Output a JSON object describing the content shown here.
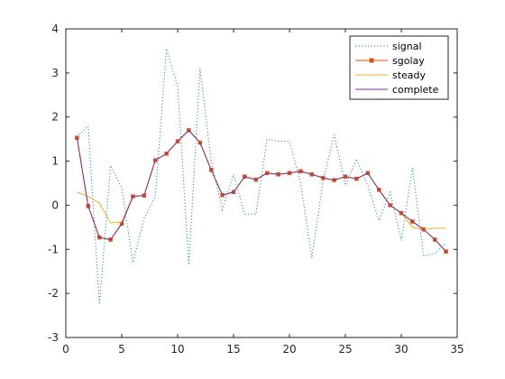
{
  "chart_data": {
    "type": "line",
    "title": "",
    "xlabel": "",
    "ylabel": "",
    "xlim": [
      0,
      35
    ],
    "ylim": [
      -3,
      4
    ],
    "xticks": [
      0,
      5,
      10,
      15,
      20,
      25,
      30,
      35
    ],
    "yticks": [
      -3,
      -2,
      -1,
      0,
      1,
      2,
      3,
      4
    ],
    "grid": false,
    "legend_position": "top-right",
    "series": [
      {
        "name": "signal",
        "style": "dotted",
        "marker": "none",
        "color": "#0072BD",
        "x": [
          1,
          2,
          3,
          4,
          5,
          6,
          7,
          8,
          9,
          10,
          11,
          12,
          13,
          14,
          15,
          16,
          17,
          18,
          19,
          20,
          21,
          22,
          23,
          24,
          25,
          26,
          27,
          28,
          29,
          30,
          31,
          32,
          33,
          34
        ],
        "y": [
          1.55,
          1.8,
          -2.25,
          0.9,
          0.4,
          -1.3,
          -0.3,
          0.2,
          3.55,
          2.7,
          -1.35,
          3.1,
          1.0,
          -0.1,
          0.7,
          -0.2,
          -0.2,
          1.5,
          1.45,
          1.45,
          0.5,
          -1.2,
          0.55,
          1.6,
          0.45,
          1.05,
          0.45,
          -0.35,
          0.3,
          -0.8,
          0.85,
          -1.15,
          -1.1,
          -0.85
        ]
      },
      {
        "name": "sgolay",
        "style": "solid",
        "marker": "square",
        "color": "#D95319",
        "x": [
          1,
          2,
          3,
          4,
          5,
          6,
          7,
          8,
          9,
          10,
          11,
          12,
          13,
          14,
          15,
          16,
          17,
          18,
          19,
          20,
          21,
          22,
          23,
          24,
          25,
          26,
          27,
          28,
          29,
          30,
          31,
          32,
          33,
          34
        ],
        "y": [
          1.53,
          -0.02,
          -0.73,
          -0.78,
          -0.42,
          0.2,
          0.22,
          1.02,
          1.17,
          1.45,
          1.7,
          1.42,
          0.8,
          0.23,
          0.3,
          0.65,
          0.58,
          0.73,
          0.7,
          0.73,
          0.77,
          0.7,
          0.62,
          0.57,
          0.65,
          0.6,
          0.73,
          0.35,
          0.0,
          -0.18,
          -0.37,
          -0.55,
          -0.78,
          -1.05
        ]
      },
      {
        "name": "steady",
        "style": "solid",
        "marker": "none",
        "color": "#EDB120",
        "x": [
          1,
          2,
          3,
          4,
          5,
          6,
          7,
          8,
          9,
          10,
          11,
          12,
          13,
          14,
          15,
          16,
          17,
          18,
          19,
          20,
          21,
          22,
          23,
          24,
          25,
          26,
          27,
          28,
          29,
          30,
          31,
          32,
          33,
          34
        ],
        "y": [
          0.3,
          0.2,
          0.05,
          -0.4,
          -0.38,
          0.2,
          0.22,
          1.02,
          1.17,
          1.45,
          1.7,
          1.42,
          0.8,
          0.23,
          0.3,
          0.65,
          0.58,
          0.73,
          0.7,
          0.73,
          0.77,
          0.7,
          0.62,
          0.57,
          0.65,
          0.6,
          0.73,
          0.35,
          0.0,
          -0.18,
          -0.5,
          -0.55,
          -0.52,
          -0.52
        ]
      },
      {
        "name": "complete",
        "style": "solid",
        "marker": "none",
        "color": "#7E2F8E",
        "x": [
          1,
          2,
          3,
          4,
          5,
          6,
          7,
          8,
          9,
          10,
          11,
          12,
          13,
          14,
          15,
          16,
          17,
          18,
          19,
          20,
          21,
          22,
          23,
          24,
          25,
          26,
          27,
          28,
          29,
          30,
          31,
          32,
          33,
          34
        ],
        "y": [
          1.53,
          -0.02,
          -0.73,
          -0.78,
          -0.42,
          0.2,
          0.22,
          1.02,
          1.17,
          1.45,
          1.7,
          1.42,
          0.8,
          0.23,
          0.3,
          0.65,
          0.58,
          0.73,
          0.7,
          0.73,
          0.77,
          0.7,
          0.62,
          0.57,
          0.65,
          0.6,
          0.73,
          0.35,
          0.0,
          -0.18,
          -0.37,
          -0.55,
          -0.78,
          -1.05
        ]
      }
    ]
  }
}
